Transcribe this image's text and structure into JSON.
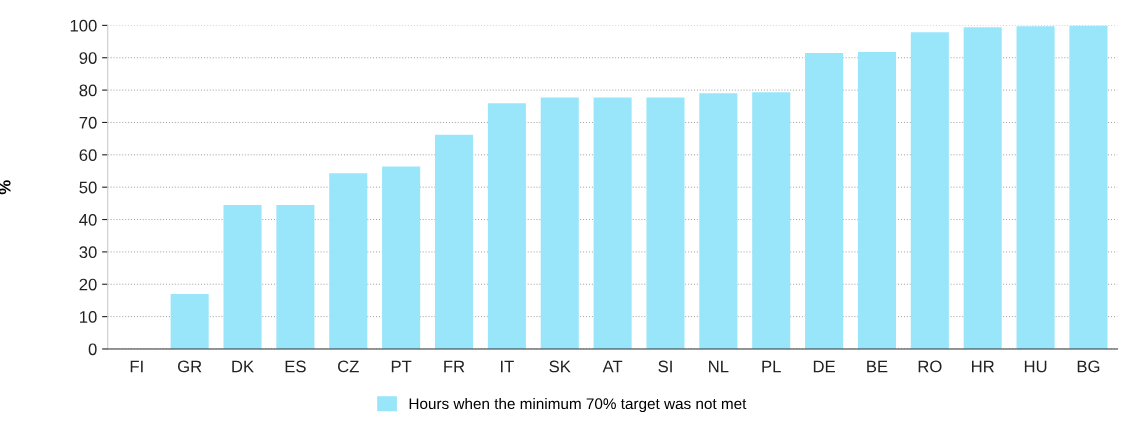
{
  "chart_data": {
    "type": "bar",
    "ylabel": "%",
    "categories": [
      "FI",
      "GR",
      "DK",
      "ES",
      "CZ",
      "PT",
      "FR",
      "IT",
      "SK",
      "AT",
      "SI",
      "NL",
      "PL",
      "DE",
      "BE",
      "RO",
      "HR",
      "HU",
      "BG"
    ],
    "series": [
      {
        "name": "Hours when the minimum 70% target was not met",
        "color": "#99e5fa",
        "values": [
          0,
          17,
          44.5,
          44.5,
          54.3,
          56.4,
          66.2,
          75.9,
          77.7,
          77.7,
          77.7,
          79,
          79.3,
          91.5,
          91.8,
          97.9,
          99.4,
          99.7,
          100
        ]
      }
    ],
    "ylim": [
      0,
      100
    ],
    "yticks": [
      0,
      10,
      20,
      30,
      40,
      50,
      60,
      70,
      80,
      90,
      100
    ],
    "grid": "y",
    "legend": "bottom"
  }
}
